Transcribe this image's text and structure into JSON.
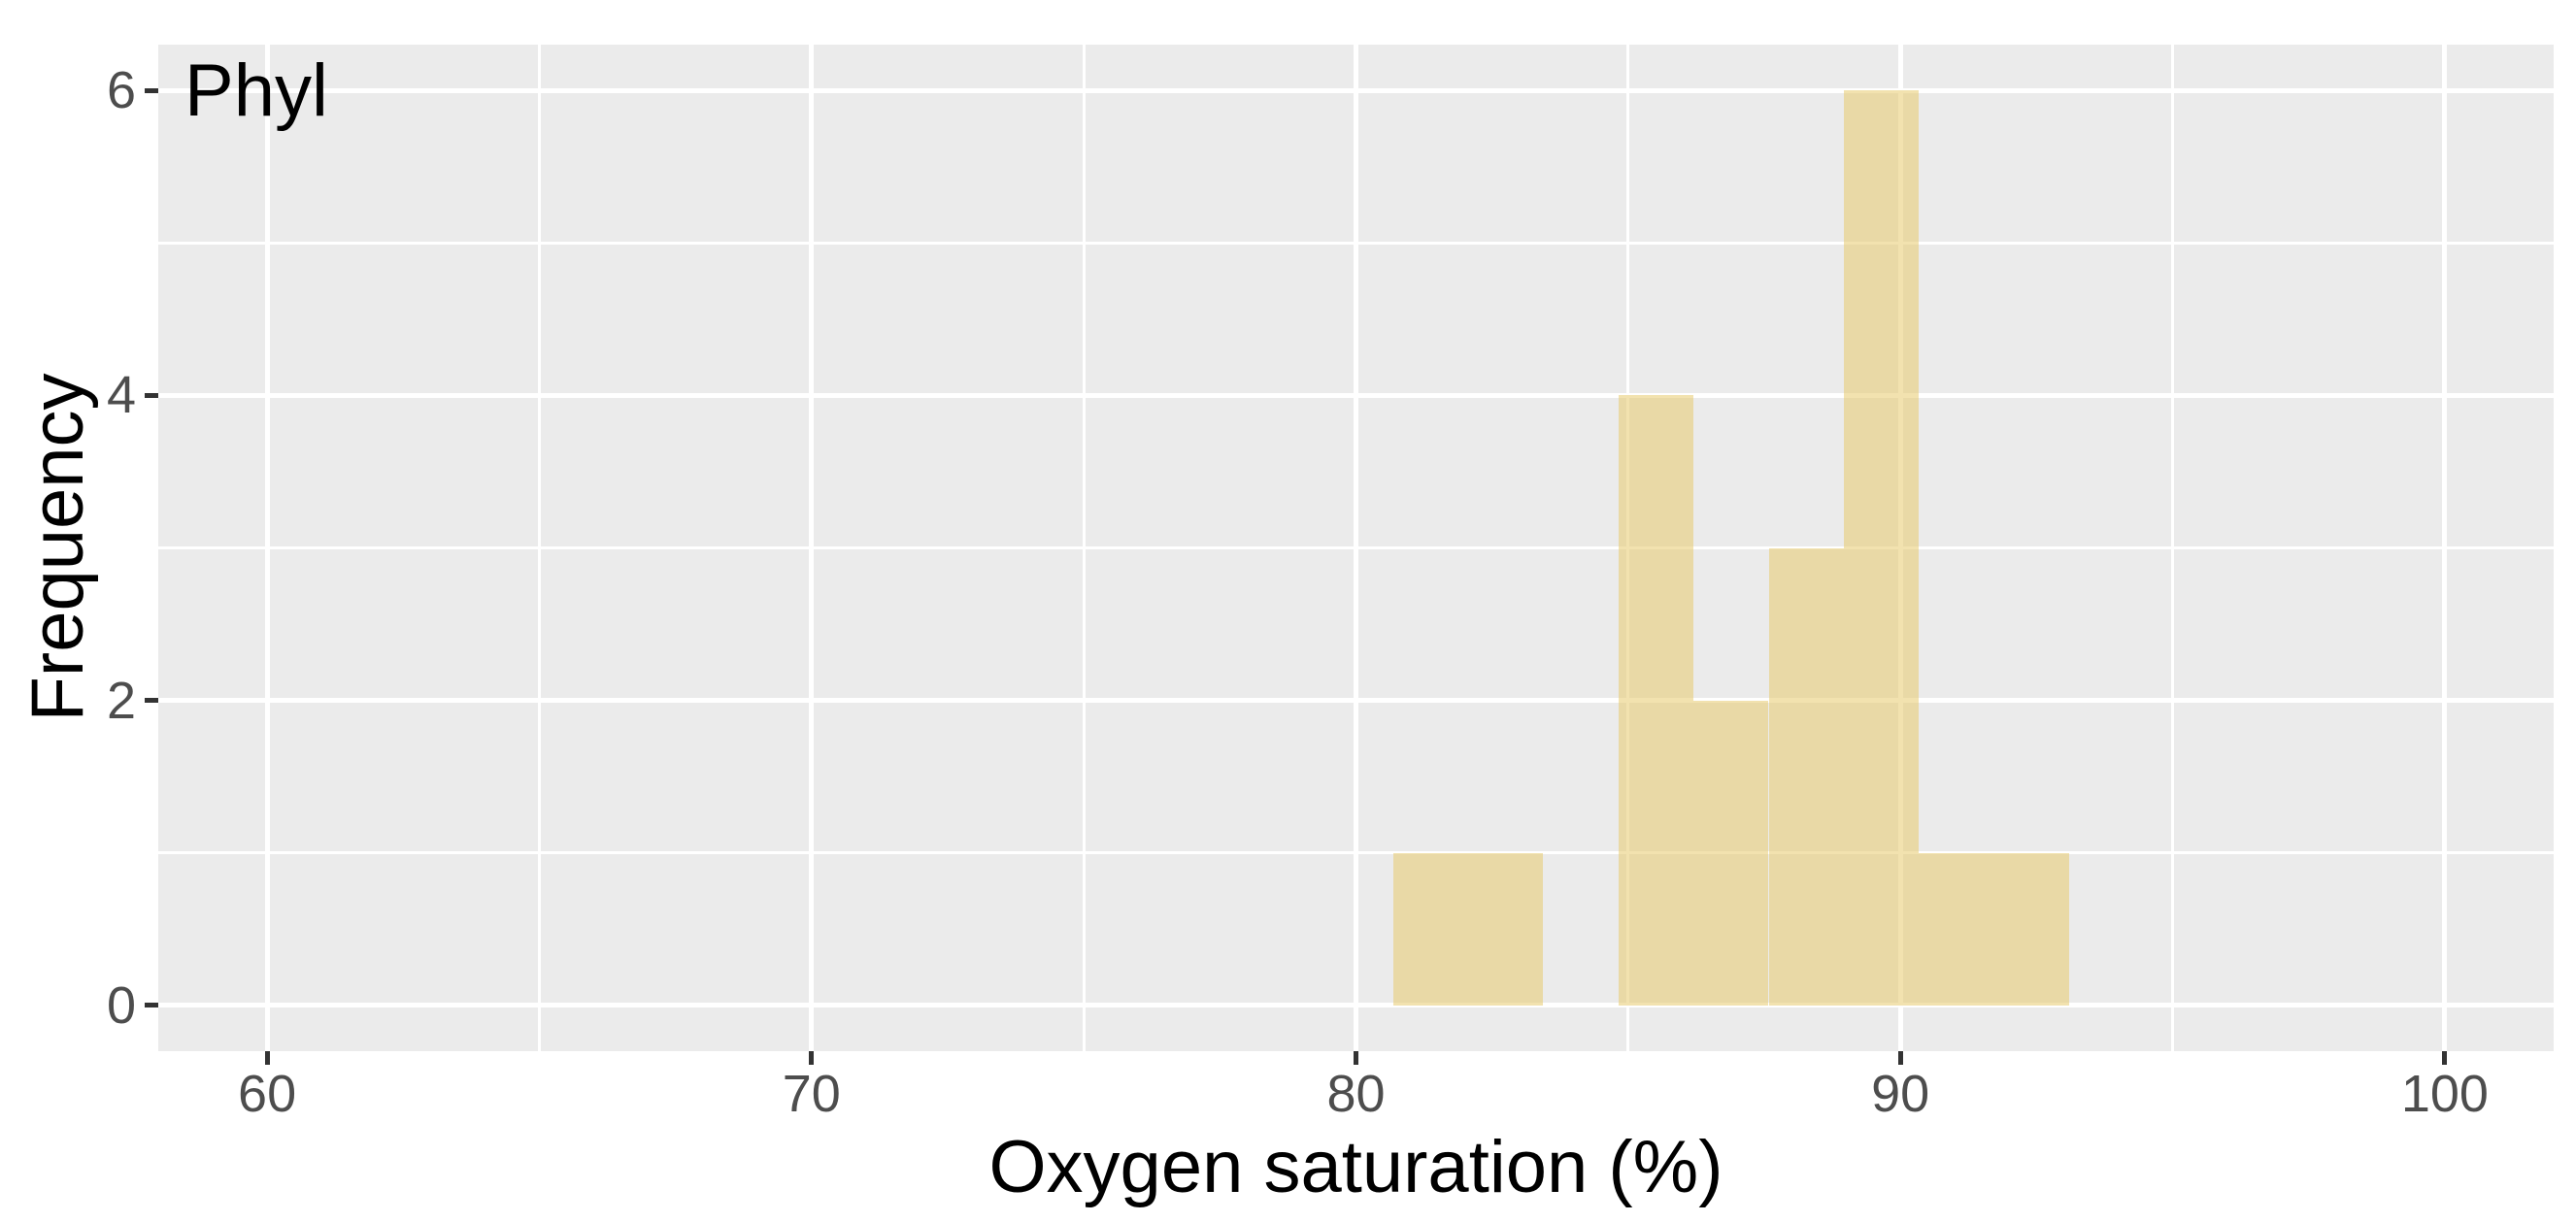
{
  "figure": {
    "background_color": "#FFFFFF"
  },
  "annotation": {
    "label": "Phyl"
  },
  "axes": {
    "x_title": "Oxygen saturation (%)",
    "y_title": "Frequency",
    "x_tick_labels": [
      "60",
      "70",
      "80",
      "90",
      "100"
    ],
    "y_tick_labels": [
      "0",
      "2",
      "4",
      "6"
    ]
  },
  "chart_data": {
    "type": "bar",
    "subtype": "histogram",
    "title": "",
    "annotation": "Phyl",
    "xlabel": "Oxygen saturation (%)",
    "ylabel": "Frequency",
    "xlim": [
      58,
      102
    ],
    "ylim": [
      -0.3,
      6.3
    ],
    "x_major_ticks": [
      60,
      70,
      80,
      90,
      100
    ],
    "x_minor_ticks": [
      65,
      75,
      85,
      95
    ],
    "y_major_ticks": [
      0,
      2,
      4,
      6
    ],
    "y_minor_ticks": [
      1,
      3,
      5
    ],
    "grid": "on",
    "legend": "none",
    "bin_edges": [
      80.68,
      82.06,
      83.44,
      84.82,
      86.2,
      87.58,
      88.96,
      90.34,
      91.72,
      93.1
    ],
    "counts": [
      1,
      1,
      0,
      4,
      2,
      3,
      6,
      1,
      1
    ],
    "total_observations": 19,
    "colors": {
      "bar_fill_rgba": "rgba(231,202,110,0.55)",
      "panel_background": "#EBEBEB",
      "gridline": "#FFFFFF",
      "tick_mark": "#333333",
      "tick_label": "#4D4D4D",
      "axis_title": "#000000",
      "annotation_text": "#000000"
    }
  }
}
